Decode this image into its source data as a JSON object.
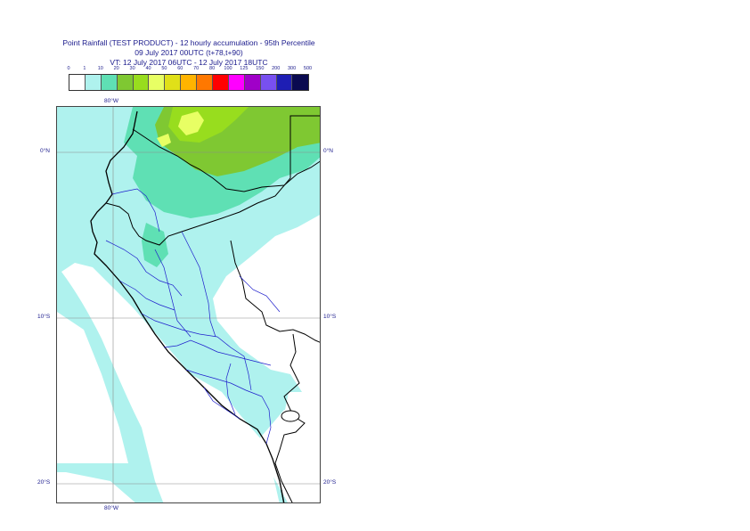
{
  "title": {
    "line1": "Point Rainfall (TEST PRODUCT) - 12 hourly accumulation - 95th Percentile",
    "line2": "09 July 2017 00UTC (t+78,t+90)",
    "line3": "VT: 12 July 2017 06UTC - 12 July 2017 18UTC"
  },
  "legend": {
    "ticks": [
      "0",
      "1",
      "10",
      "20",
      "30",
      "40",
      "50",
      "60",
      "70",
      "80",
      "100",
      "125",
      "150",
      "200",
      "300",
      "500"
    ],
    "colors": [
      "#ffffff",
      "#aff2ee",
      "#5fe0b4",
      "#7fc832",
      "#98dd1e",
      "#e8ff64",
      "#e0e018",
      "#ffb400",
      "#ff7800",
      "#ff0000",
      "#ff00ff",
      "#a000c8",
      "#7850f0",
      "#1e1eb4",
      "#0a0a50"
    ]
  },
  "map": {
    "lon_top_label": "80°W",
    "lon_bottom_label": "80°W",
    "lat_labels": {
      "eq_left": "0°N",
      "eq_right": "0°N",
      "s10_left": "10°S",
      "s10_right": "10°S",
      "s20_left": "20°S",
      "s20_right": "20°S"
    },
    "colors": {
      "sea_light": "#aff2ee",
      "dry": "#ffffff",
      "light_green": "#5fe0b4",
      "mid_green": "#7fc832",
      "bright_green": "#98dd1e",
      "yellow": "#e8ff64",
      "coast": "#000000",
      "admin": "#1e1ecc",
      "grid": "#8c8c8c"
    }
  }
}
